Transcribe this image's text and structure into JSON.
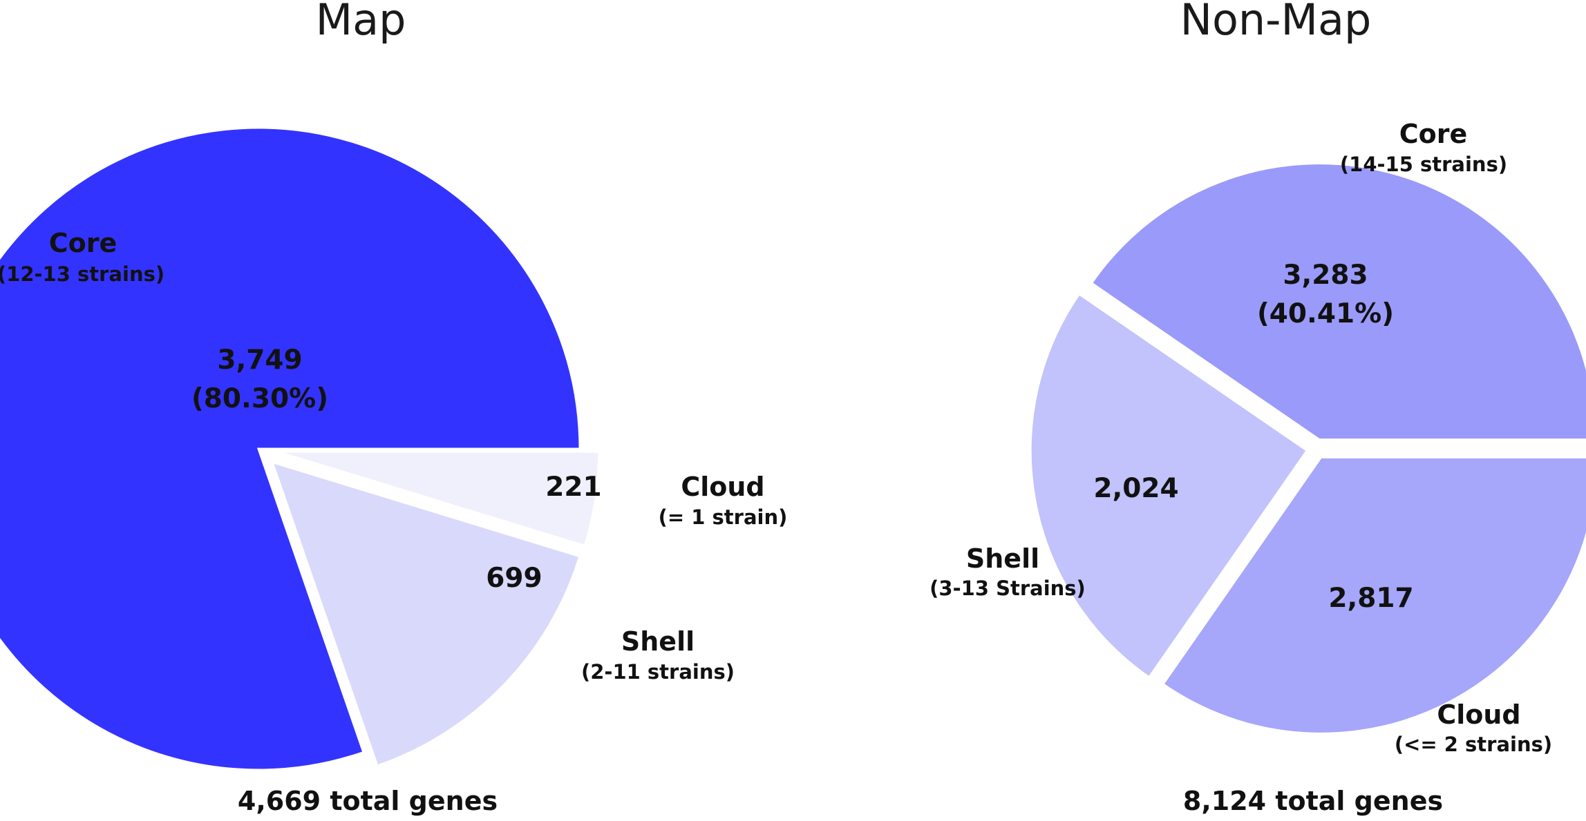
{
  "chart_data": [
    {
      "type": "pie",
      "title": "Map",
      "total_label": "4,669 total genes",
      "slices": [
        {
          "category": "Core",
          "subtitle": "(12-13 strains)",
          "value": 3749,
          "value_label": "3,749",
          "percent_label": "(80.30%)",
          "color": "#3333ff",
          "exploded": false
        },
        {
          "category": "Shell",
          "subtitle": "(2-11 strains)",
          "value": 699,
          "value_label": "699",
          "percent_label": "",
          "color": "#d9d9fb",
          "exploded": true
        },
        {
          "category": "Cloud",
          "subtitle": "(= 1 strain)",
          "value": 221,
          "value_label": "221",
          "percent_label": "",
          "color": "#f0f0fd",
          "exploded": true
        }
      ]
    },
    {
      "type": "pie",
      "title": "Non-Map",
      "total_label": "8,124 total genes",
      "slices": [
        {
          "category": "Core",
          "subtitle": "(14-15 strains)",
          "value": 3283,
          "value_label": "3,283",
          "percent_label": "(40.41%)",
          "color": "#9a9afb",
          "exploded": true
        },
        {
          "category": "Shell",
          "subtitle": "(3-13 Strains)",
          "value": 2024,
          "value_label": "2,024",
          "percent_label": "",
          "color": "#c2c2fc",
          "exploded": true
        },
        {
          "category": "Cloud",
          "subtitle": "(<= 2 strains)",
          "value": 2817,
          "value_label": "2,817",
          "percent_label": "",
          "color": "#a6a6fb",
          "exploded": true
        }
      ]
    }
  ]
}
